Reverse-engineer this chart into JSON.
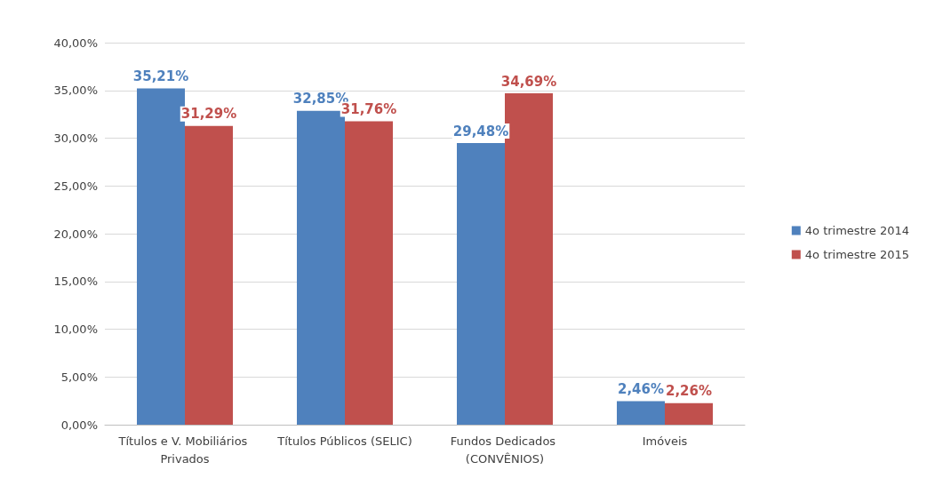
{
  "chart_data": {
    "type": "bar",
    "categories": [
      "Títulos e V. Mobiliários Privados",
      "Títulos Públicos (SELIC)",
      "Fundos Dedicados (CONVÊNIOS)",
      "Imóveis"
    ],
    "series": [
      {
        "name": "4o trimestre 2014",
        "color": "#4f81bd",
        "values": [
          35.21,
          32.85,
          29.48,
          2.46
        ],
        "value_labels": [
          "35,21%",
          "32,85%",
          "29,48%",
          "2,46%"
        ]
      },
      {
        "name": "4o trimestre 2015",
        "color": "#c0504d",
        "values": [
          31.29,
          31.76,
          34.69,
          2.26
        ],
        "value_labels": [
          "31,29%",
          "31,76%",
          "34,69%",
          "2,26%"
        ]
      }
    ],
    "ylim": [
      0,
      40
    ],
    "yticks": [
      {
        "value": 0,
        "label": "0,00%"
      },
      {
        "value": 5,
        "label": "5,00%"
      },
      {
        "value": 10,
        "label": "10,00%"
      },
      {
        "value": 15,
        "label": "15,00%"
      },
      {
        "value": 20,
        "label": "20,00%"
      },
      {
        "value": 25,
        "label": "25,00%"
      },
      {
        "value": 30,
        "label": "30,00%"
      },
      {
        "value": 35,
        "label": "35,00%"
      },
      {
        "value": 40,
        "label": "40,00%"
      }
    ],
    "grid": "y",
    "legend": "right"
  }
}
